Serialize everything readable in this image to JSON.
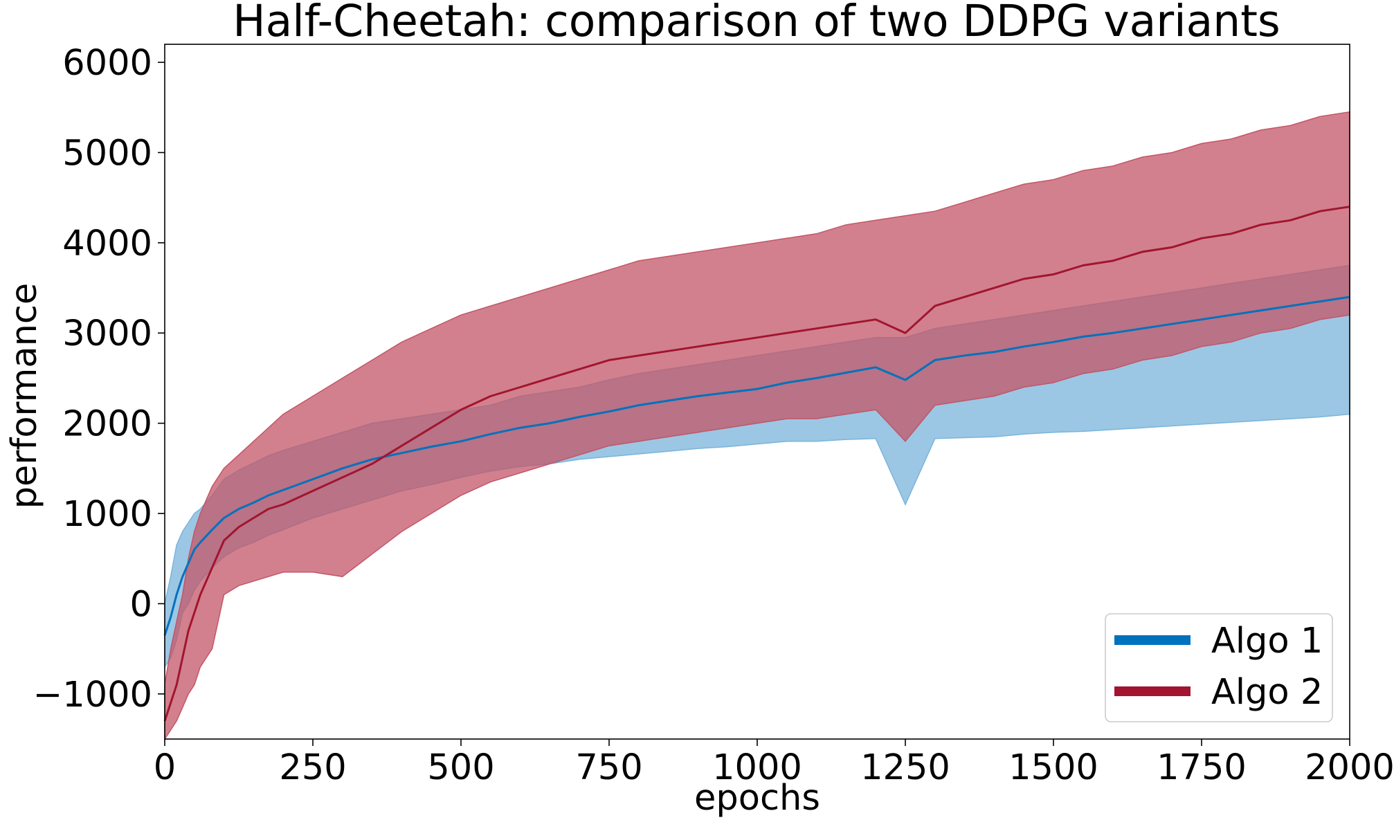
{
  "chart_data": {
    "type": "line",
    "title": "Half-Cheetah: comparison of two DDPG variants",
    "xlabel": "epochs",
    "ylabel": "performance",
    "xlim": [
      0,
      2000
    ],
    "ylim": [
      -1500,
      6200
    ],
    "xticks": [
      0,
      250,
      500,
      750,
      1000,
      1250,
      1500,
      1750,
      2000
    ],
    "xtick_labels": [
      "0",
      "250",
      "500",
      "750",
      "1000",
      "1250",
      "1500",
      "1750",
      "2000"
    ],
    "yticks": [
      -1000,
      0,
      1000,
      2000,
      3000,
      4000,
      5000,
      6000
    ],
    "ytick_labels": [
      "−1000",
      "0",
      "1000",
      "2000",
      "3000",
      "4000",
      "5000",
      "6000"
    ],
    "grid": false,
    "legend_position": "bottom-right",
    "x": [
      0,
      10,
      20,
      30,
      40,
      50,
      60,
      80,
      100,
      125,
      150,
      175,
      200,
      250,
      300,
      350,
      400,
      450,
      500,
      550,
      600,
      650,
      700,
      750,
      800,
      850,
      900,
      950,
      1000,
      1050,
      1100,
      1150,
      1200,
      1250,
      1300,
      1350,
      1400,
      1450,
      1500,
      1550,
      1600,
      1650,
      1700,
      1750,
      1800,
      1850,
      1900,
      1950,
      2000
    ],
    "series": [
      {
        "name": "Algo 1",
        "color": "#0072bd",
        "band_color": "#7ab4db",
        "mean": [
          -350,
          -150,
          100,
          300,
          450,
          600,
          680,
          820,
          950,
          1050,
          1120,
          1200,
          1260,
          1380,
          1500,
          1600,
          1670,
          1740,
          1800,
          1880,
          1950,
          2000,
          2070,
          2130,
          2200,
          2250,
          2300,
          2340,
          2380,
          2450,
          2500,
          2560,
          2620,
          2480,
          2700,
          2750,
          2790,
          2850,
          2900,
          2960,
          3000,
          3050,
          3100,
          3150,
          3200,
          3250,
          3300,
          3350,
          3400
        ],
        "upper": [
          0,
          300,
          650,
          800,
          900,
          1000,
          1050,
          1200,
          1380,
          1480,
          1560,
          1640,
          1700,
          1800,
          1900,
          2000,
          2050,
          2100,
          2150,
          2200,
          2300,
          2350,
          2400,
          2480,
          2550,
          2600,
          2650,
          2700,
          2750,
          2800,
          2850,
          2900,
          2950,
          2950,
          3050,
          3100,
          3150,
          3200,
          3250,
          3300,
          3350,
          3400,
          3450,
          3500,
          3550,
          3600,
          3650,
          3700,
          3750
        ],
        "lower": [
          -700,
          -600,
          -400,
          -100,
          0,
          150,
          250,
          400,
          520,
          620,
          680,
          760,
          820,
          950,
          1050,
          1150,
          1250,
          1320,
          1400,
          1470,
          1520,
          1550,
          1600,
          1630,
          1660,
          1690,
          1720,
          1740,
          1770,
          1800,
          1800,
          1820,
          1830,
          1100,
          1830,
          1840,
          1850,
          1880,
          1900,
          1910,
          1930,
          1950,
          1970,
          1990,
          2010,
          2030,
          2050,
          2070,
          2100
        ]
      },
      {
        "name": "Algo 2",
        "color": "#a2142f",
        "band_color": "#c35567",
        "mean": [
          -1300,
          -1100,
          -900,
          -600,
          -300,
          -100,
          100,
          400,
          700,
          850,
          950,
          1050,
          1100,
          1250,
          1400,
          1550,
          1750,
          1950,
          2150,
          2300,
          2400,
          2500,
          2600,
          2700,
          2750,
          2800,
          2850,
          2900,
          2950,
          3000,
          3050,
          3100,
          3150,
          3000,
          3300,
          3400,
          3500,
          3600,
          3650,
          3750,
          3800,
          3900,
          3950,
          4050,
          4100,
          4200,
          4250,
          4350,
          4400
        ],
        "upper": [
          -900,
          -500,
          -200,
          100,
          500,
          800,
          1000,
          1300,
          1500,
          1650,
          1800,
          1950,
          2100,
          2300,
          2500,
          2700,
          2900,
          3050,
          3200,
          3300,
          3400,
          3500,
          3600,
          3700,
          3800,
          3850,
          3900,
          3950,
          4000,
          4050,
          4100,
          4200,
          4250,
          4300,
          4350,
          4450,
          4550,
          4650,
          4700,
          4800,
          4850,
          4950,
          5000,
          5100,
          5150,
          5250,
          5300,
          5400,
          5450
        ],
        "lower": [
          -1500,
          -1400,
          -1300,
          -1150,
          -1000,
          -900,
          -700,
          -500,
          100,
          200,
          250,
          300,
          350,
          350,
          300,
          550,
          800,
          1000,
          1200,
          1350,
          1450,
          1550,
          1650,
          1750,
          1800,
          1850,
          1900,
          1950,
          2000,
          2050,
          2050,
          2100,
          2150,
          1800,
          2200,
          2250,
          2300,
          2400,
          2450,
          2550,
          2600,
          2700,
          2750,
          2850,
          2900,
          3000,
          3050,
          3150,
          3200
        ]
      }
    ]
  }
}
